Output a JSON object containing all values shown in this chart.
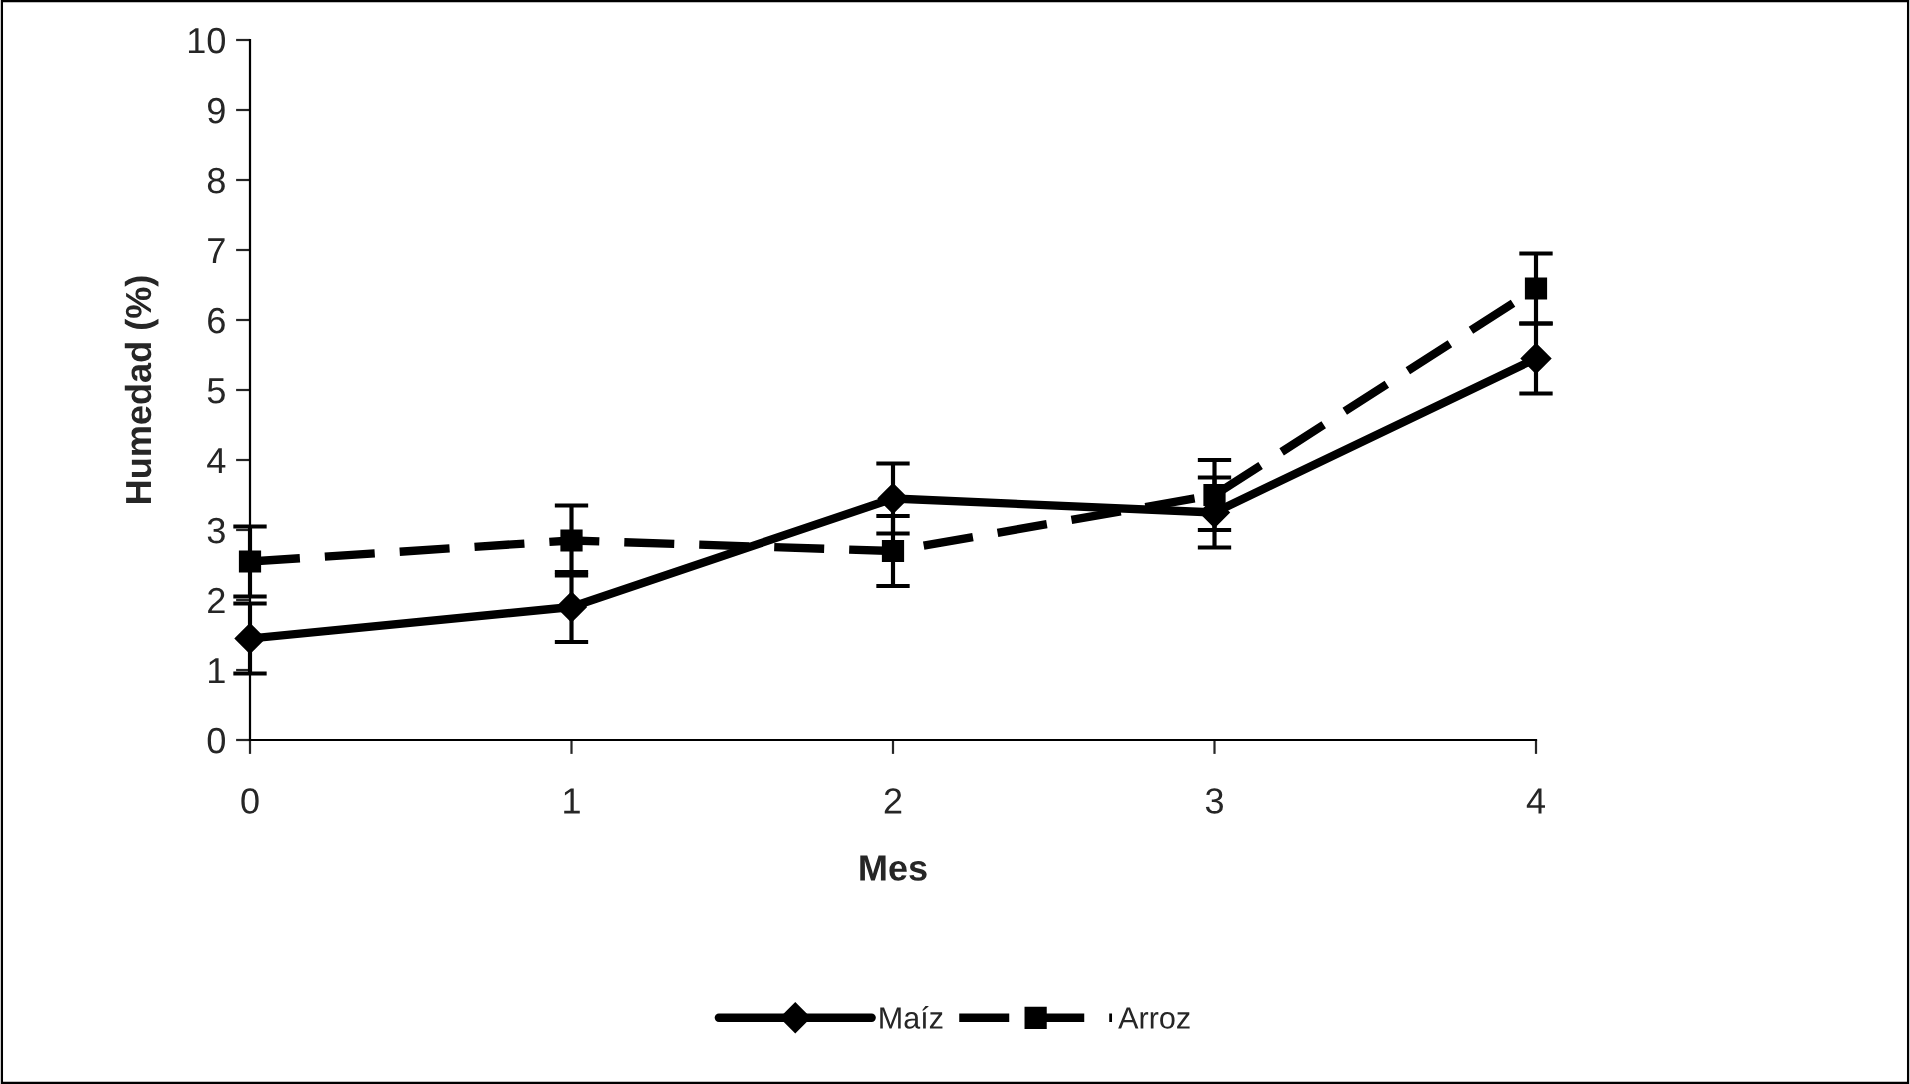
{
  "chart_data": {
    "type": "line",
    "xlabel": "Mes",
    "ylabel": "Humedad (%)",
    "x": [
      0,
      1,
      2,
      3,
      4
    ],
    "xlim": [
      0,
      4
    ],
    "xticks": [
      0,
      1,
      2,
      3,
      4
    ],
    "ylim": [
      0,
      10
    ],
    "yticks": [
      0,
      1,
      2,
      3,
      4,
      5,
      6,
      7,
      8,
      9,
      10
    ],
    "grid": false,
    "legend": "bottom",
    "series": [
      {
        "name": "Maíz",
        "color": "#000000",
        "values": [
          1.45,
          1.9,
          3.45,
          3.25,
          5.45
        ],
        "errors": [
          0.5,
          0.5,
          0.5,
          0.5,
          0.5
        ],
        "marker": "diamond",
        "line_style": "solid"
      },
      {
        "name": "Arroz",
        "color": "#000000",
        "values": [
          2.55,
          2.85,
          2.7,
          3.5,
          6.45
        ],
        "errors": [
          0.5,
          0.5,
          0.5,
          0.5,
          0.5
        ],
        "marker": "square",
        "line_style": "dashed"
      }
    ]
  }
}
